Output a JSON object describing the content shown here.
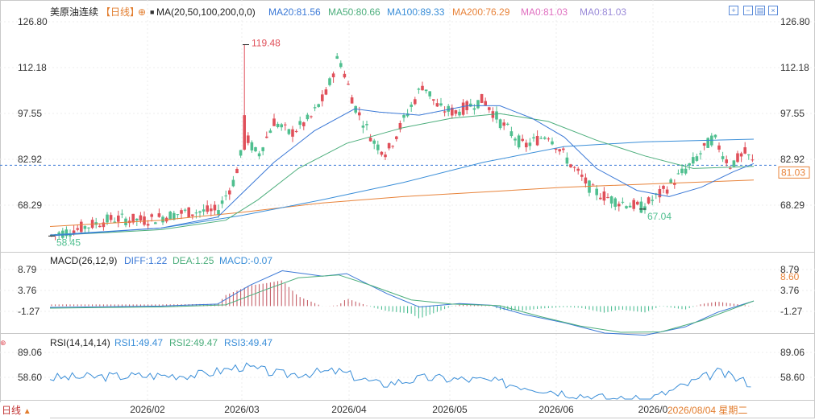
{
  "header": {
    "symbol": "美原油连续",
    "period": "【日线】",
    "ma_label": "MA(20,50,100,200,0,0)",
    "ma20": "MA20:81.56",
    "ma50": "MA50:80.66",
    "ma100": "MA100:89.33",
    "ma200": "MA200:76.29",
    "ma0a": "MA0:81.03",
    "ma0b": "MA0:81.03"
  },
  "toolbar": {
    "buttons": [
      "zoom-in",
      "zoom-out",
      "layout",
      "close"
    ]
  },
  "macd_header": {
    "label": "MACD(26,12,9)",
    "diff": "DIFF:1.22",
    "dea": "DEA:1.25",
    "macd": "MACD:-0.07"
  },
  "rsi_header": {
    "label": "RSI(14,14,14)",
    "rsi1": "RSI1:49.47",
    "rsi2": "RSI2:49.47",
    "rsi3": "RSI3:49.47"
  },
  "footer": {
    "period_button": "日线",
    "date_status": "2026/08/04 星期二"
  },
  "colors": {
    "up": "#e0505a",
    "down": "#4fbf8f",
    "ma20": "#3a78d6",
    "ma50": "#4cae7c",
    "ma100": "#3a8ed8",
    "ma200": "#e8833a",
    "macd_hist_up": "#c0505a",
    "macd_hist_down": "#3fb98b"
  },
  "chart_data": [
    {
      "type": "candlestick",
      "name": "price",
      "y_ticks": [
        126.8,
        112.18,
        97.55,
        82.92,
        68.29
      ],
      "x_labels": [
        "2026/02",
        "2026/03",
        "2026/04",
        "2026/05",
        "2026/06",
        "2026/0"
      ],
      "current_price": 81.03,
      "annotations": [
        {
          "label": "119.48",
          "value": 119.48,
          "kind": "high"
        },
        {
          "label": "58.45",
          "value": 58.45,
          "kind": "low"
        },
        {
          "label": "67.04",
          "value": 67.04,
          "kind": "low"
        }
      ],
      "series": [
        {
          "name": "MA20",
          "value": 81.56
        },
        {
          "name": "MA50",
          "value": 80.66
        },
        {
          "name": "MA100",
          "value": 89.33
        },
        {
          "name": "MA200",
          "value": 76.29
        }
      ]
    },
    {
      "type": "bar+line",
      "name": "MACD(26,12,9)",
      "y_ticks": [
        8.79,
        3.76,
        -1.27
      ],
      "current_marker": 8.6,
      "values": {
        "DIFF": 1.22,
        "DEA": 1.25,
        "MACD": -0.07
      }
    },
    {
      "type": "line",
      "name": "RSI(14,14,14)",
      "y_ticks": [
        89.06,
        58.6
      ],
      "values": {
        "RSI1": 49.47,
        "RSI2": 49.47,
        "RSI3": 49.47
      }
    }
  ]
}
